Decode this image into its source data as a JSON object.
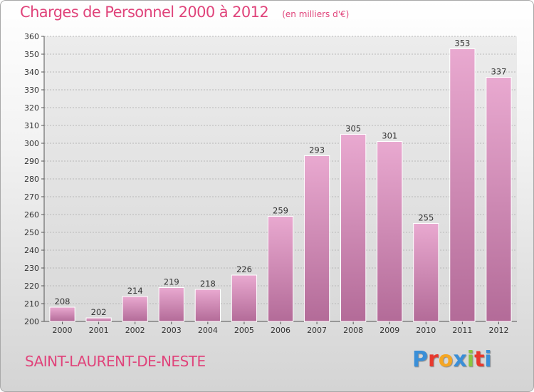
{
  "header": {
    "title": "Charges de Personnel 2000 à 2012",
    "subtitle": "(en milliers d'€)"
  },
  "footer": {
    "commune": "SAINT-LAURENT-DE-NESTE",
    "logo": "Proxiti",
    "logo_colors": [
      "#3a8fd8",
      "#e8392e",
      "#f5a623",
      "#3a8fd8",
      "#8bc540",
      "#e8392e",
      "#3a8fd8"
    ]
  },
  "colors": {
    "accent": "#e0447b",
    "bar_top": "#e9a9d0",
    "bar_bottom": "#b36b98"
  },
  "chart_data": {
    "type": "bar",
    "title": "Charges de Personnel 2000 à 2012",
    "subtitle": "(en milliers d'€)",
    "categories": [
      "2000",
      "2001",
      "2002",
      "2003",
      "2004",
      "2005",
      "2006",
      "2007",
      "2008",
      "2009",
      "2010",
      "2011",
      "2012"
    ],
    "values": [
      208,
      202,
      214,
      219,
      218,
      226,
      259,
      293,
      305,
      301,
      255,
      353,
      337
    ],
    "ylim": [
      200,
      360
    ],
    "ytick_step": 10,
    "grid": true,
    "xlabel": "",
    "ylabel": ""
  }
}
